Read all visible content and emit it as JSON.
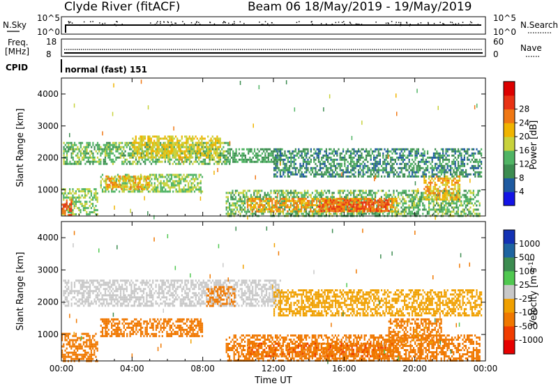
{
  "header": {
    "station": "Clyde River (fitACF)",
    "beam_dates": "Beam 06  18/May/2019 - 19/May/2019"
  },
  "strip": {
    "nsky_label": "N.Sky",
    "nsearch_label": "N.Search",
    "left_top": "10^5",
    "left_bottom": "10^0",
    "right_top": "10^5",
    "right_bottom": "10^0",
    "freq_label_1": "Freq.",
    "freq_label_2": "[MHz]",
    "freq_top": "18",
    "freq_bottom": "8",
    "nave_label": "Nave",
    "nave_top": "60",
    "nave_bottom": "0",
    "cpid_label": "CPID",
    "cpid_value": "normal (fast) 151"
  },
  "colors": {
    "power": [
      "#1414e6",
      "#1e5aa0",
      "#3c8c50",
      "#50b464",
      "#c8d23c",
      "#f0b400",
      "#f07814",
      "#e83214",
      "#dc0000"
    ],
    "velocity": [
      "#e60000",
      "#f03c00",
      "#f07800",
      "#f0a000",
      "#c8c8c8",
      "#50c850",
      "#3c8c50",
      "#1e64a0",
      "#1432b4"
    ]
  },
  "chart_data": [
    {
      "type": "heatmap",
      "panel": "power",
      "ylabel": "Slant Range [km]",
      "xlabel": "",
      "xlim": [
        "00:00",
        "00:00"
      ],
      "x_ticks": [
        "00:00",
        "04:00",
        "08:00",
        "12:00",
        "16:00",
        "20:00",
        "00:00"
      ],
      "ylim": [
        180,
        4500
      ],
      "y_ticks": [
        1000,
        2000,
        3000,
        4000
      ],
      "colorbar": {
        "label": "Power [dB]",
        "range": [
          0,
          32
        ],
        "ticks": [
          "4",
          "8",
          "12",
          "16",
          "20",
          "24",
          "28"
        ]
      },
      "regions": [
        {
          "t0": 0.1,
          "t1": 9.5,
          "r0": 1800,
          "r1": 2500,
          "value": 14
        },
        {
          "t0": 4.0,
          "t1": 9.0,
          "r0": 2000,
          "r1": 2700,
          "value": 20
        },
        {
          "t0": 9.5,
          "t1": 12.5,
          "r0": 1900,
          "r1": 2300,
          "value": 12
        },
        {
          "t0": 12.0,
          "t1": 23.8,
          "r0": 1400,
          "r1": 2300,
          "value": 10
        },
        {
          "t0": 2.2,
          "t1": 8.0,
          "r0": 950,
          "r1": 1500,
          "value": 16
        },
        {
          "t0": 2.5,
          "t1": 5.0,
          "r0": 1050,
          "r1": 1450,
          "value": 22
        },
        {
          "t0": 9.3,
          "t1": 23.7,
          "r0": 200,
          "r1": 1000,
          "value": 14
        },
        {
          "t0": 10.5,
          "t1": 19.0,
          "r0": 350,
          "r1": 750,
          "value": 24
        },
        {
          "t0": 14.5,
          "t1": 18.5,
          "r0": 350,
          "r1": 700,
          "value": 28
        },
        {
          "t0": 20.5,
          "t1": 22.5,
          "r0": 700,
          "r1": 1450,
          "value": 22
        },
        {
          "t0": 0.0,
          "t1": 2.0,
          "r0": 200,
          "r1": 1050,
          "value": 16
        },
        {
          "t0": 0.0,
          "t1": 0.6,
          "r0": 200,
          "r1": 700,
          "value": 28
        }
      ]
    },
    {
      "type": "heatmap",
      "panel": "velocity",
      "ylabel": "Slant Range [km]",
      "xlabel": "Time UT",
      "xlim": [
        "00:00",
        "00:00"
      ],
      "x_ticks": [
        "00:00",
        "04:00",
        "08:00",
        "12:00",
        "16:00",
        "20:00",
        "00:00"
      ],
      "ylim": [
        180,
        4500
      ],
      "y_ticks": [
        1000,
        2000,
        3000,
        4000
      ],
      "colorbar": {
        "label": "Velocity [m s^-1]",
        "ticks": [
          "1000",
          "500",
          "100",
          "25",
          "-25",
          "-100",
          "-500",
          "-1000"
        ]
      },
      "regions": [
        {
          "t0": 0.1,
          "t1": 12.5,
          "r0": 1900,
          "r1": 2700,
          "value": 0
        },
        {
          "t0": 8.2,
          "t1": 9.8,
          "r0": 1900,
          "r1": 2500,
          "value": -300
        },
        {
          "t0": 12.0,
          "t1": 23.8,
          "r0": 1600,
          "r1": 2400,
          "value": -60
        },
        {
          "t0": 2.2,
          "t1": 8.0,
          "r0": 950,
          "r1": 1500,
          "value": -300
        },
        {
          "t0": 9.3,
          "t1": 23.7,
          "r0": 200,
          "r1": 1000,
          "value": -200
        },
        {
          "t0": 10.5,
          "t1": 19.0,
          "r0": 350,
          "r1": 750,
          "value": -400
        },
        {
          "t0": 18.5,
          "t1": 21.5,
          "r0": 700,
          "r1": 1500,
          "value": -150
        },
        {
          "t0": 0.0,
          "t1": 2.0,
          "r0": 200,
          "r1": 1050,
          "value": -250
        }
      ]
    }
  ]
}
